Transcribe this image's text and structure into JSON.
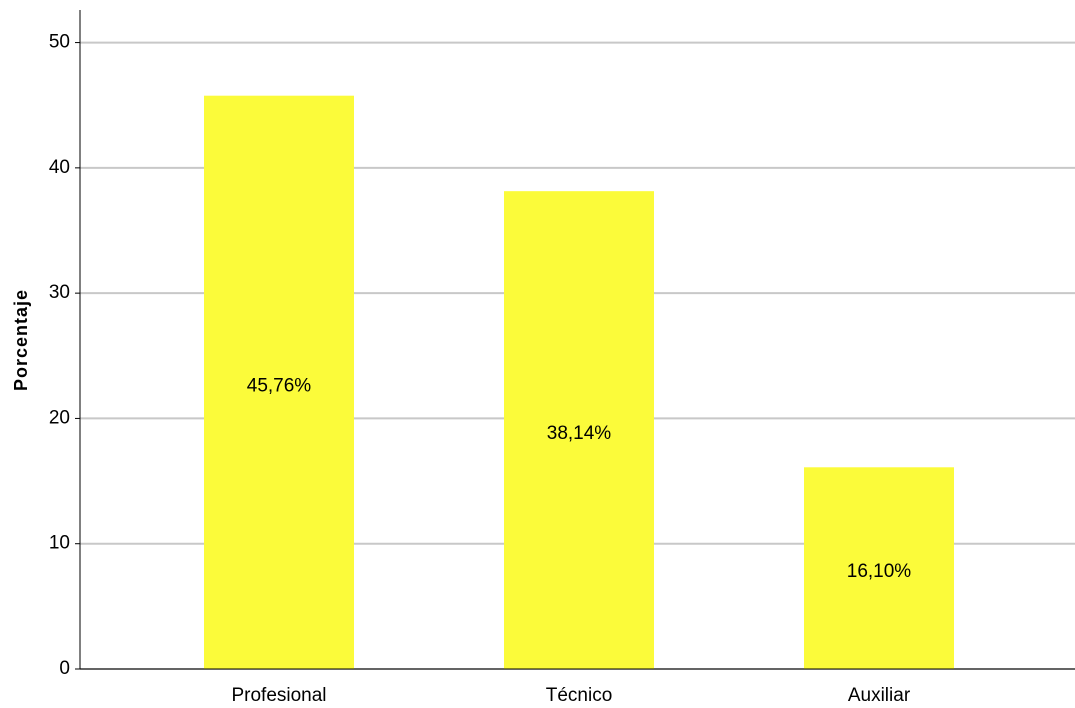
{
  "chart_data": {
    "type": "bar",
    "y_label": "Porcentaje",
    "categories": [
      "Profesional",
      "Técnico",
      "Auxiliar"
    ],
    "values": [
      45.76,
      38.14,
      16.1
    ],
    "value_labels": [
      "45,76%",
      "38,14%",
      "16,10%"
    ],
    "color": "#fbfb3a",
    "ylim": [
      0,
      52.6
    ],
    "yticks": [
      0,
      10,
      20,
      30,
      40,
      50
    ],
    "grid": true
  }
}
